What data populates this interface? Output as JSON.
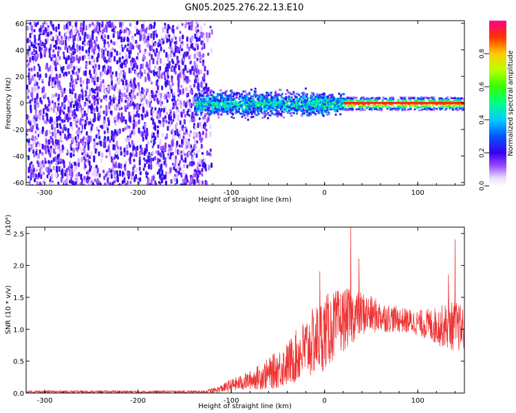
{
  "title": "GN05.2025.276.22.13.E10",
  "colorbar": {
    "label": "Normalized spectral amplitude",
    "ticks": [
      "0.0",
      "0.2",
      "0.4",
      "0.6",
      "0.8"
    ],
    "tick_values": [
      0.0,
      0.2,
      0.4,
      0.6,
      0.8
    ],
    "range": [
      0,
      1
    ]
  },
  "chart_data": [
    {
      "type": "heatmap",
      "name": "spectrogram",
      "xlabel": "Height of straight line (km)",
      "ylabel": "Frequency (Hz)",
      "xlim": [
        -320,
        150
      ],
      "ylim": [
        -62,
        62
      ],
      "xticks": [
        -300,
        -200,
        -100,
        0,
        100
      ],
      "xtick_labels": [
        "-300",
        "-200",
        "-100",
        "0",
        "100"
      ],
      "yticks": [
        -60,
        -40,
        -20,
        0,
        20,
        40,
        60
      ],
      "ytick_labels": [
        "-60",
        "-40",
        "-20",
        "0",
        "20",
        "40",
        "60"
      ],
      "regions": [
        {
          "x_range": [
            -320,
            -125
          ],
          "f_range": [
            -62,
            62
          ],
          "level": 0.15,
          "description_level": "low, noisy"
        },
        {
          "x_range": [
            -140,
            20
          ],
          "f_range": [
            -10,
            10
          ],
          "level": 0.45
        },
        {
          "x_range": [
            20,
            150
          ],
          "f_range": [
            -1.5,
            1.5
          ],
          "level": 0.95
        }
      ]
    },
    {
      "type": "line",
      "name": "snr",
      "xlabel": "Height of straight line (km)",
      "ylabel": "SNR (10 * v/v)",
      "scale_label": "(x10⁴)",
      "xlim": [
        -320,
        150
      ],
      "ylim": [
        0,
        2.6
      ],
      "xticks": [
        -300,
        -200,
        -100,
        0,
        100
      ],
      "xtick_labels": [
        "-300",
        "-200",
        "-100",
        "0",
        "100"
      ],
      "yticks": [
        0,
        0.5,
        1.0,
        1.5,
        2.0,
        2.5
      ],
      "ytick_labels": [
        "0.0",
        "0.5",
        "1.0",
        "1.5",
        "2.0",
        "2.5"
      ],
      "color": "#ee3333",
      "envelope": {
        "x": [
          -320,
          -130,
          -115,
          -100,
          -80,
          -60,
          -40,
          -20,
          0,
          20,
          40,
          60,
          80,
          100,
          120,
          140,
          150
        ],
        "mean": [
          0.02,
          0.02,
          0.05,
          0.12,
          0.2,
          0.3,
          0.45,
          0.7,
          0.95,
          1.15,
          1.25,
          1.2,
          1.15,
          1.1,
          1.05,
          1.05,
          1.0
        ],
        "spread": [
          0.02,
          0.02,
          0.05,
          0.1,
          0.15,
          0.25,
          0.35,
          0.5,
          0.6,
          0.5,
          0.35,
          0.25,
          0.2,
          0.2,
          0.3,
          0.4,
          0.35
        ]
      },
      "peaks": [
        {
          "x": 28,
          "y": 2.62
        },
        {
          "x": 37,
          "y": 2.1
        },
        {
          "x": 140,
          "y": 2.4
        },
        {
          "x": -5,
          "y": 1.9
        },
        {
          "x": 133,
          "y": 1.85
        }
      ]
    }
  ]
}
